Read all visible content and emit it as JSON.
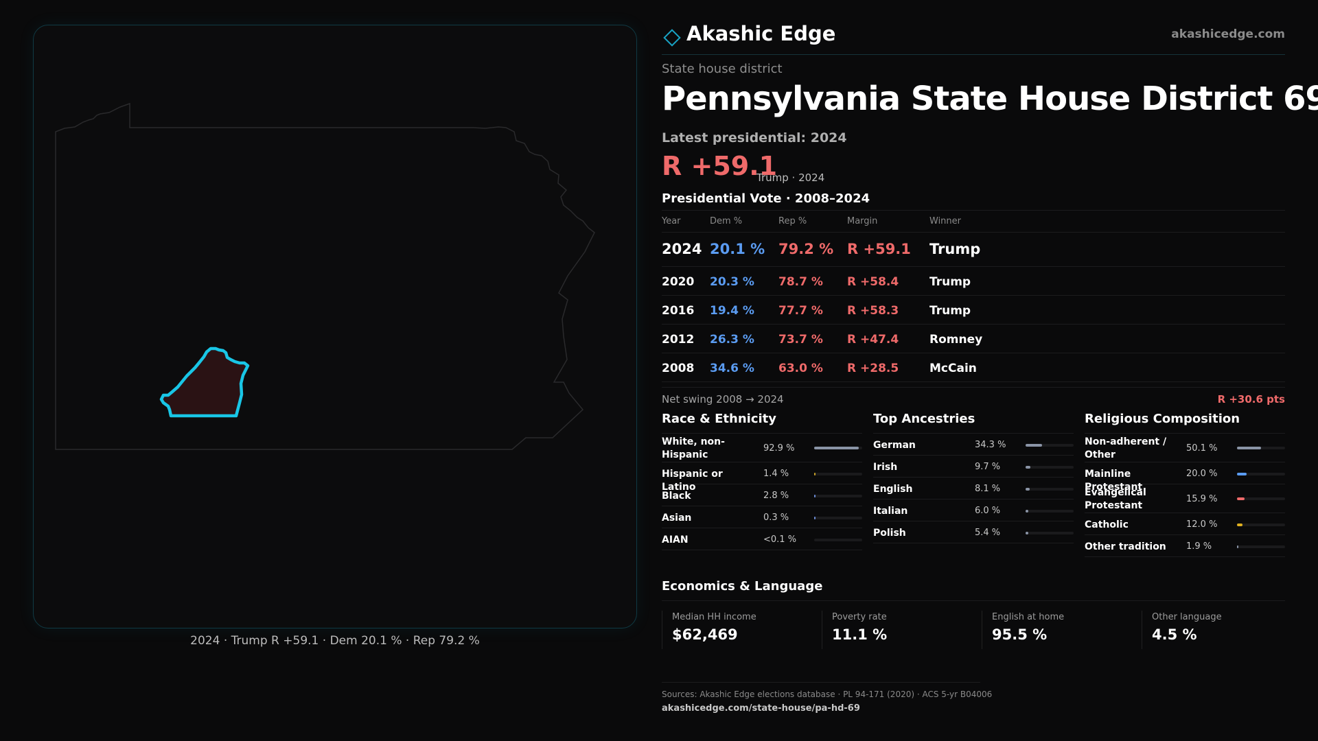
{
  "map": {
    "caption": "2024 · Trump R +59.1 · Dem 20.1 % · Rep 79.2 %",
    "state_outline_color": "#2a2a2c",
    "district_stroke_color": "#19c6e6",
    "district_fill_color": "#2a1214"
  },
  "header": {
    "brand_name": "Akashic Edge",
    "brand_url": "akashicedge.com",
    "accent_color": "#19a3c4"
  },
  "kicker": "State house district",
  "title": "Pennsylvania State House District 69",
  "latest_label": "Latest presidential: 2024",
  "big_margin": "R +59.1",
  "big_margin_sub": "Trump · 2024",
  "presidential_heading": "Presidential Vote · 2008–2024",
  "vote_table": {
    "columns": [
      "Year",
      "Dem %",
      "Rep %",
      "Margin",
      "Winner"
    ],
    "rows": [
      {
        "year": "2024",
        "dem": "20.1 %",
        "rep": "79.2 %",
        "margin": "R +59.1",
        "winner": "Trump"
      },
      {
        "year": "2020",
        "dem": "20.3 %",
        "rep": "78.7 %",
        "margin": "R +58.4",
        "winner": "Trump"
      },
      {
        "year": "2016",
        "dem": "19.4 %",
        "rep": "77.7 %",
        "margin": "R +58.3",
        "winner": "Trump"
      },
      {
        "year": "2012",
        "dem": "26.3 %",
        "rep": "73.7 %",
        "margin": "R +47.4",
        "winner": "Romney"
      },
      {
        "year": "2008",
        "dem": "34.6 %",
        "rep": "63.0 %",
        "margin": "R +28.5",
        "winner": "McCain"
      }
    ]
  },
  "swing": {
    "label": "Net swing 2008 → 2024",
    "value": "R +30.6 pts"
  },
  "race": {
    "title": "Race & Ethnicity",
    "items": [
      {
        "label": "White, non-Hispanic",
        "pct": "92.9 %",
        "share": 0.929,
        "color": "#8a94a6"
      },
      {
        "label": "Hispanic or Latino",
        "pct": "1.4 %",
        "share": 0.014,
        "color": "#c9a227"
      },
      {
        "label": "Black",
        "pct": "2.8 %",
        "share": 0.028,
        "color": "#6c8cd6"
      },
      {
        "label": "Asian",
        "pct": "0.3 %",
        "share": 0.003,
        "color": "#6c8cd6"
      },
      {
        "label": "AIAN",
        "pct": "<0.1 %",
        "share": 0.0,
        "color": "#6c8cd6"
      }
    ]
  },
  "ancestry": {
    "title": "Top Ancestries",
    "items": [
      {
        "label": "German",
        "pct": "34.3 %",
        "share": 0.343,
        "color": "#8a94a6"
      },
      {
        "label": "Irish",
        "pct": "9.7 %",
        "share": 0.097,
        "color": "#8a94a6"
      },
      {
        "label": "English",
        "pct": "8.1 %",
        "share": 0.081,
        "color": "#8a94a6"
      },
      {
        "label": "Italian",
        "pct": "6.0 %",
        "share": 0.06,
        "color": "#8a94a6"
      },
      {
        "label": "Polish",
        "pct": "5.4 %",
        "share": 0.054,
        "color": "#8a94a6"
      }
    ]
  },
  "religion": {
    "title": "Religious Composition",
    "items": [
      {
        "label": "Non-adherent / Other",
        "pct": "50.1 %",
        "share": 0.501,
        "color": "#8a94a6"
      },
      {
        "label": "Mainline Protestant",
        "pct": "20.0 %",
        "share": 0.2,
        "color": "#5b9cf2"
      },
      {
        "label": "Evangelical Protestant",
        "pct": "15.9 %",
        "share": 0.159,
        "color": "#ef6a6a"
      },
      {
        "label": "Catholic",
        "pct": "12.0 %",
        "share": 0.12,
        "color": "#e0b020"
      },
      {
        "label": "Other tradition",
        "pct": "1.9 %",
        "share": 0.019,
        "color": "#8a94a6"
      }
    ]
  },
  "economics": {
    "title": "Economics & Language",
    "items": [
      {
        "label": "Median HH income",
        "value": "$62,469"
      },
      {
        "label": "Poverty rate",
        "value": "11.1 %"
      },
      {
        "label": "English at home",
        "value": "95.5 %"
      },
      {
        "label": "Other language",
        "value": "4.5 %"
      }
    ]
  },
  "sources": {
    "text": "Sources: Akashic Edge elections database · PL 94-171 (2020) · ACS 5-yr B04006",
    "url": "akashicedge.com/state-house/pa-hd-69"
  }
}
